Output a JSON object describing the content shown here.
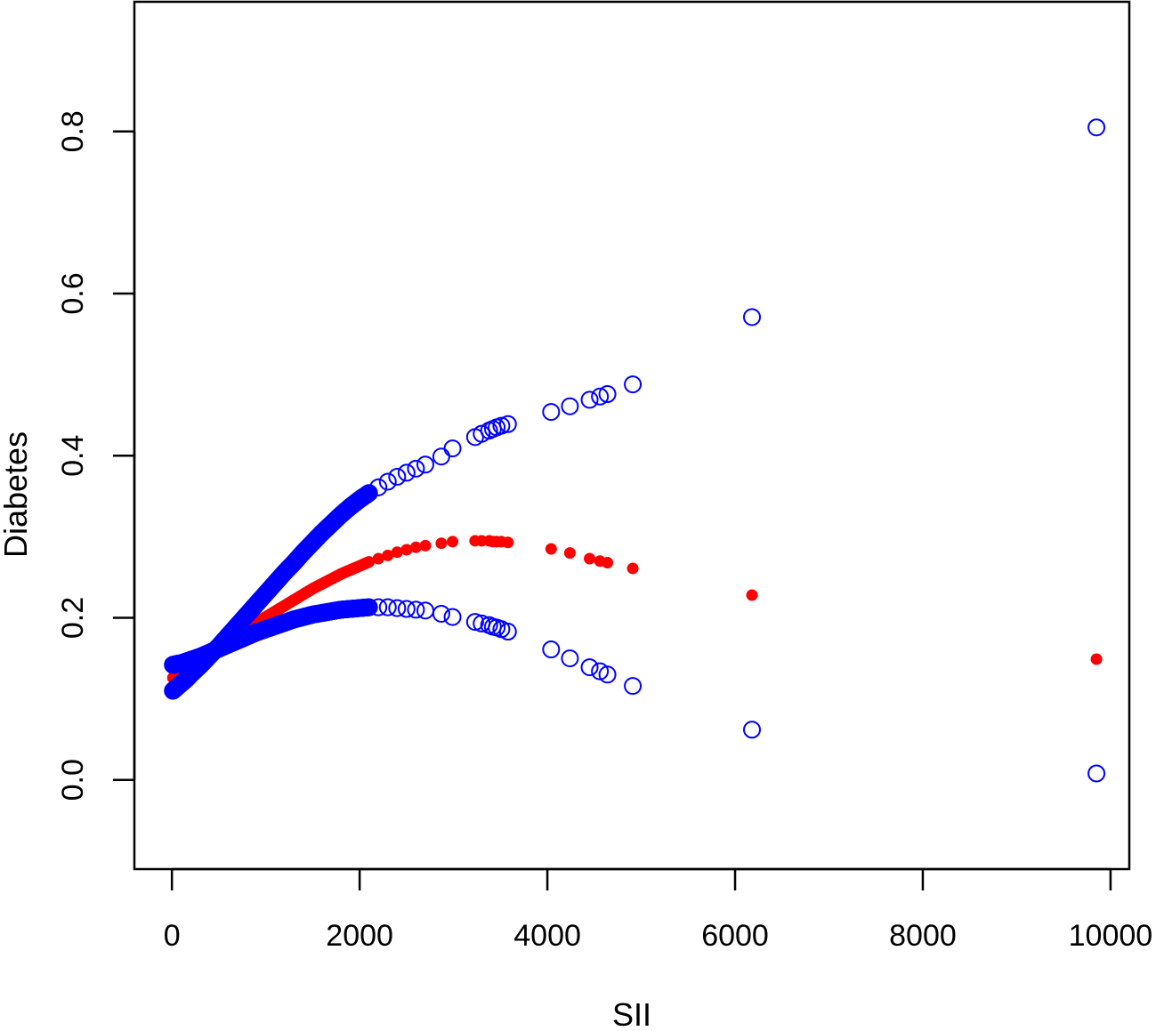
{
  "chart_data": {
    "type": "scatter",
    "title": "",
    "xlabel": "SII",
    "ylabel": "Diabetes",
    "xlim": [
      -400,
      10200
    ],
    "ylim": [
      -0.11,
      0.96
    ],
    "x_ticks": [
      "0",
      "2000",
      "4000",
      "6000",
      "8000",
      "10000"
    ],
    "x_tick_values": [
      0,
      2000,
      4000,
      6000,
      8000,
      10000
    ],
    "y_ticks": [
      "0.0",
      "0.2",
      "0.4",
      "0.6",
      "0.8"
    ],
    "y_tick_values": [
      0.0,
      0.2,
      0.4,
      0.6,
      0.8
    ],
    "grid": false,
    "series": [
      {
        "style": "filled",
        "color": "#ff0000",
        "x": [
          10,
          50,
          100,
          150,
          200,
          300,
          400,
          500,
          600,
          700,
          800,
          900,
          1000,
          1100,
          1200,
          1300,
          1400,
          1500,
          1600,
          1700,
          1800,
          1900,
          2000,
          2100,
          2200,
          2300,
          2400,
          2500,
          2600,
          2700,
          2870,
          2990,
          3230,
          3300,
          3380,
          3420,
          3460,
          3510,
          3580,
          4040,
          4240,
          4450,
          4560,
          4640,
          4910,
          6180,
          9850
        ],
        "y": [
          0.126,
          0.129,
          0.133,
          0.137,
          0.141,
          0.148,
          0.156,
          0.163,
          0.171,
          0.179,
          0.186,
          0.194,
          0.201,
          0.208,
          0.215,
          0.222,
          0.229,
          0.236,
          0.242,
          0.248,
          0.254,
          0.259,
          0.264,
          0.269,
          0.273,
          0.277,
          0.281,
          0.284,
          0.287,
          0.289,
          0.292,
          0.294,
          0.295,
          0.295,
          0.295,
          0.294,
          0.294,
          0.294,
          0.293,
          0.285,
          0.28,
          0.273,
          0.27,
          0.268,
          0.261,
          0.228,
          0.149
        ]
      },
      {
        "style": "open",
        "color": "#0000ff",
        "x": [
          10,
          50,
          100,
          150,
          200,
          300,
          400,
          500,
          600,
          700,
          800,
          900,
          1000,
          1100,
          1200,
          1300,
          1400,
          1500,
          1600,
          1700,
          1800,
          1900,
          2000,
          2100,
          2200,
          2300,
          2400,
          2500,
          2600,
          2700,
          2870,
          2990,
          3230,
          3300,
          3380,
          3420,
          3460,
          3510,
          3580,
          4040,
          4240,
          4450,
          4560,
          4640,
          4910,
          6180,
          9850
        ],
        "y": [
          0.11,
          0.114,
          0.119,
          0.124,
          0.13,
          0.141,
          0.153,
          0.165,
          0.178,
          0.191,
          0.204,
          0.217,
          0.23,
          0.243,
          0.256,
          0.268,
          0.281,
          0.293,
          0.305,
          0.316,
          0.327,
          0.337,
          0.346,
          0.354,
          0.361,
          0.368,
          0.374,
          0.379,
          0.384,
          0.389,
          0.399,
          0.409,
          0.423,
          0.427,
          0.431,
          0.433,
          0.435,
          0.437,
          0.439,
          0.454,
          0.461,
          0.469,
          0.473,
          0.476,
          0.488,
          0.571,
          0.805
        ]
      },
      {
        "style": "open",
        "color": "#0000ff",
        "x": [
          10,
          50,
          100,
          150,
          200,
          300,
          400,
          500,
          600,
          700,
          800,
          900,
          1000,
          1100,
          1200,
          1300,
          1400,
          1500,
          1600,
          1700,
          1800,
          1900,
          2000,
          2100,
          2200,
          2300,
          2400,
          2500,
          2600,
          2700,
          2870,
          2990,
          3230,
          3300,
          3380,
          3420,
          3460,
          3510,
          3580,
          4040,
          4240,
          4450,
          4560,
          4640,
          4910,
          6180,
          9850
        ],
        "y": [
          0.142,
          0.143,
          0.144,
          0.146,
          0.148,
          0.152,
          0.157,
          0.162,
          0.167,
          0.172,
          0.177,
          0.182,
          0.186,
          0.19,
          0.194,
          0.198,
          0.201,
          0.204,
          0.206,
          0.208,
          0.21,
          0.211,
          0.212,
          0.213,
          0.213,
          0.213,
          0.212,
          0.211,
          0.21,
          0.209,
          0.205,
          0.201,
          0.195,
          0.193,
          0.191,
          0.189,
          0.188,
          0.186,
          0.183,
          0.161,
          0.15,
          0.139,
          0.134,
          0.13,
          0.116,
          0.062,
          0.008
        ]
      }
    ]
  }
}
